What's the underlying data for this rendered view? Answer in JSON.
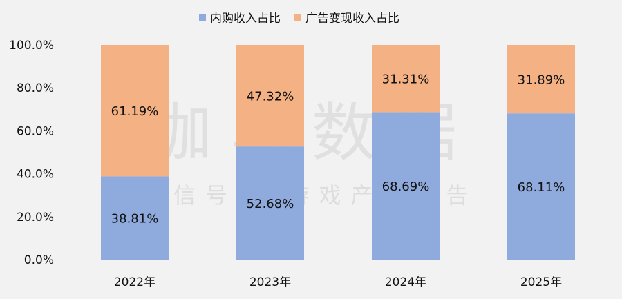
{
  "colors": {
    "background": "#f2f2f2",
    "in_app": "#8faadc",
    "ads": "#f4b183"
  },
  "watermark": {
    "brand": "伽马数据",
    "subtitle": "微信号 · 游戏产业报告"
  },
  "chart_data": {
    "type": "bar",
    "stacked": true,
    "categories": [
      "2022年",
      "2023年",
      "2024年",
      "2025年"
    ],
    "series": [
      {
        "name": "内购收入占比",
        "values": [
          38.81,
          52.68,
          68.69,
          68.11
        ],
        "labels": [
          "38.81%",
          "52.68%",
          "68.69%",
          "68.11%"
        ]
      },
      {
        "name": "广告变现收入占比",
        "values": [
          61.19,
          47.32,
          31.31,
          31.89
        ],
        "labels": [
          "61.19%",
          "47.32%",
          "31.31%",
          "31.89%"
        ]
      }
    ],
    "ylim": [
      0,
      100
    ],
    "yticks": [
      "0.0%",
      "20.0%",
      "40.0%",
      "60.0%",
      "80.0%",
      "100.0%"
    ],
    "grid": false,
    "legend": "top"
  }
}
